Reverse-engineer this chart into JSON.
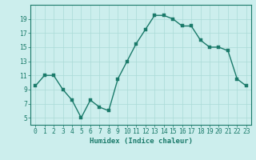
{
  "x": [
    0,
    1,
    2,
    3,
    4,
    5,
    6,
    7,
    8,
    9,
    10,
    11,
    12,
    13,
    14,
    15,
    16,
    17,
    18,
    19,
    20,
    21,
    22,
    23
  ],
  "y": [
    9.5,
    11.0,
    11.0,
    9.0,
    7.5,
    5.0,
    7.5,
    6.5,
    6.0,
    10.5,
    13.0,
    15.5,
    17.5,
    19.5,
    19.5,
    19.0,
    18.0,
    18.0,
    16.0,
    15.0,
    15.0,
    14.5,
    10.5,
    9.5
  ],
  "line_color": "#1a7a6a",
  "marker_color": "#1a7a6a",
  "bg_color": "#cceeed",
  "grid_color": "#aadbd7",
  "axis_color": "#1a7a6a",
  "xlabel": "Humidex (Indice chaleur)",
  "xlim": [
    -0.5,
    23.5
  ],
  "ylim": [
    4,
    21
  ],
  "yticks": [
    5,
    7,
    9,
    11,
    13,
    15,
    17,
    19
  ],
  "xlabel_fontsize": 6.5,
  "tick_fontsize": 5.8,
  "marker_size": 2.2,
  "line_width": 1.0
}
